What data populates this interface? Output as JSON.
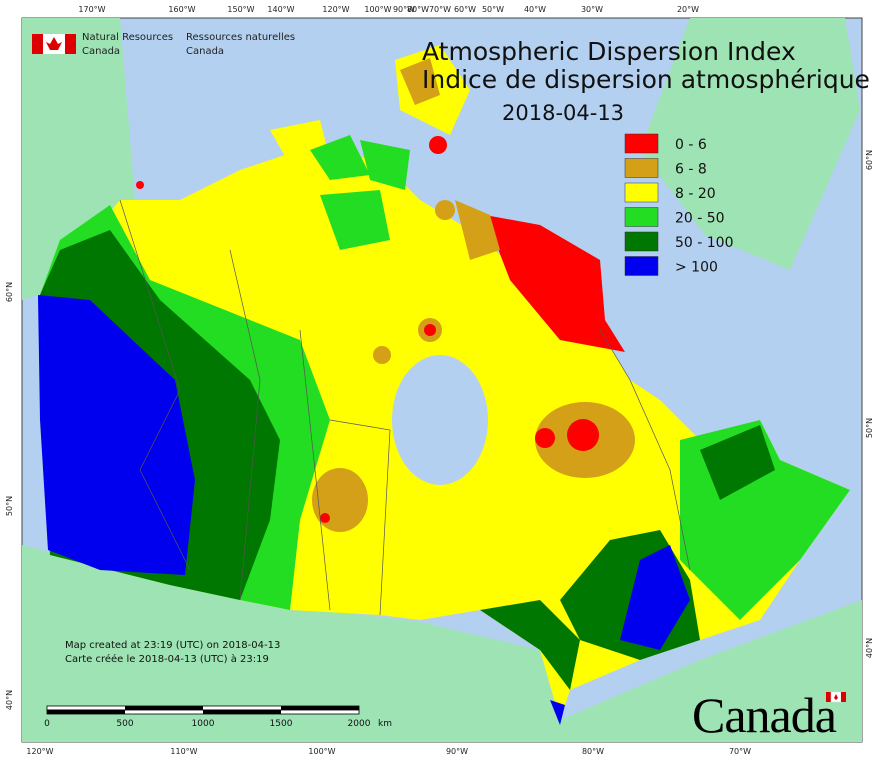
{
  "header": {
    "agency_en": [
      "Natural Resources",
      "Canada"
    ],
    "agency_fr": [
      "Ressources naturelles",
      "Canada"
    ]
  },
  "title": {
    "en": "Atmospheric Dispersion Index",
    "fr": "Indice de dispersion atmosphérique",
    "date": "2018-04-13"
  },
  "legend": [
    {
      "label": "0 - 6",
      "color": "#ff0000"
    },
    {
      "label": "6 - 8",
      "color": "#d4a017"
    },
    {
      "label": "8 - 20",
      "color": "#ffff00"
    },
    {
      "label": "20 - 50",
      "color": "#22dd22"
    },
    {
      "label": "50 - 100",
      "color": "#007700"
    },
    {
      "label": "> 100",
      "color": "#0000ee"
    }
  ],
  "graticule": {
    "top": [
      "170°W",
      "160°W",
      "150°W",
      "140°W",
      "120°W",
      "100°W",
      "90°W",
      "80°W",
      "70°W",
      "60°W",
      "50°W",
      "40°W",
      "30°W",
      "20°W"
    ],
    "bottom": [
      "120°W",
      "110°W",
      "100°W",
      "90°W",
      "80°W",
      "70°W"
    ],
    "left": [
      "60°N",
      "50°N",
      "40°N"
    ],
    "right": [
      "60°N",
      "50°N",
      "40°N"
    ]
  },
  "scale_bar": {
    "labels": [
      "0",
      "500",
      "1000",
      "1500",
      "2000"
    ],
    "unit": "km"
  },
  "notes": [
    "Map created at 23:19 (UTC) on 2018-04-13",
    "Carte créée le 2018-04-13 (UTC) à 23:19"
  ],
  "wordmark": "Canada"
}
